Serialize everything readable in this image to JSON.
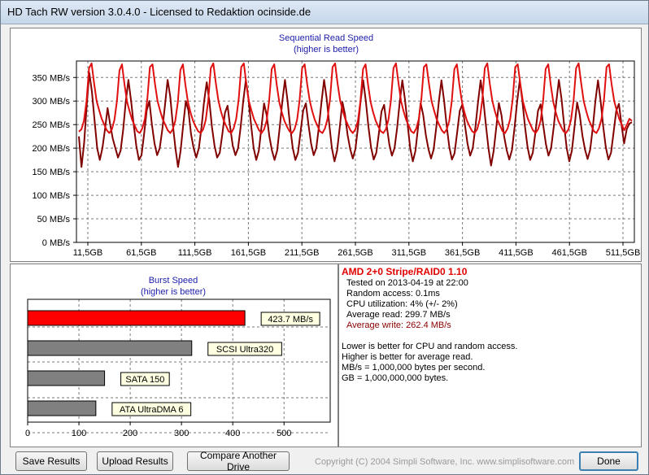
{
  "window": {
    "title": "HD Tach RW version 3.0.4.0 - Licensed to Redaktion ocinside.de"
  },
  "sequential": {
    "title": "Sequential Read Speed",
    "subtitle": "(higher is better)"
  },
  "burst": {
    "title": "Burst Speed",
    "subtitle": "(higher is better)"
  },
  "info": {
    "drive_name": "AMD 2+0 Stripe/RAID0 1.10",
    "tested_on": "Tested on 2013-04-19 at 22:00",
    "random_access": "Random access: 0.1ms",
    "cpu_utilization": "CPU utilization: 4% (+/- 2%)",
    "average_read": "Average read: 299.7 MB/s",
    "average_write": "Average write: 262.4 MB/s",
    "note1": "Lower is better for CPU and random access.",
    "note2": "Higher is better for average read.",
    "note3": "MB/s = 1,000,000 bytes per second.",
    "note4": "GB = 1,000,000,000 bytes."
  },
  "buttons": {
    "save": "Save Results",
    "upload": "Upload Results",
    "compare": "Compare Another Drive",
    "done": "Done"
  },
  "copyright": "Copyright (C) 2004 Simpli Software, Inc. www.simplisoftware.com",
  "colors": {
    "read": "#e01010",
    "write": "#800000",
    "burst_main": "#ff0000",
    "burst_ref": "#808080",
    "label_bg": "#ffffe1"
  },
  "chart_data": [
    {
      "type": "line",
      "title": "Sequential Read Speed",
      "subtitle": "(higher is better)",
      "x_tick_labels": [
        "11,5GB",
        "61,5GB",
        "111,5GB",
        "161,5GB",
        "211,5GB",
        "261,5GB",
        "311,5GB",
        "361,5GB",
        "411,5GB",
        "461,5GB",
        "511,5GB"
      ],
      "y_tick_labels": [
        "0 MB/s",
        "50 MB/s",
        "100 MB/s",
        "150 MB/s",
        "200 MB/s",
        "250 MB/s",
        "300 MB/s",
        "350 MB/s"
      ],
      "xlim": [
        0,
        520
      ],
      "ylim": [
        0,
        385
      ],
      "grid": true,
      "series": [
        {
          "key": "read",
          "values": [
            235,
            240,
            258,
            300,
            370,
            380,
            338,
            300,
            280,
            262,
            250,
            238,
            232,
            240,
            260,
            300,
            365,
            378,
            335,
            298,
            278,
            260,
            248,
            236,
            232,
            242,
            262,
            305,
            372,
            378,
            336,
            300,
            280,
            262,
            250,
            238,
            232,
            240,
            258,
            298,
            366,
            378,
            334,
            298,
            276,
            258,
            246,
            236,
            232,
            240,
            260,
            302,
            370,
            380,
            338,
            300,
            278,
            260,
            248,
            236,
            232,
            242,
            262,
            304,
            372,
            380,
            336,
            300,
            280,
            262,
            250,
            238,
            232,
            240,
            258,
            300,
            368,
            378,
            334,
            298,
            276,
            258,
            246,
            236,
            232,
            240,
            260,
            302,
            370,
            378,
            336,
            300,
            278,
            260,
            248,
            236,
            232,
            242,
            262,
            304,
            372,
            380,
            336,
            300,
            280,
            262,
            250,
            238,
            232,
            240,
            258,
            300,
            368,
            378,
            334,
            298,
            276,
            258,
            246,
            236,
            232,
            240,
            260,
            302,
            370,
            380,
            338,
            300,
            278,
            260,
            248,
            236,
            232,
            242,
            262,
            304,
            372,
            378,
            336,
            300,
            280,
            262,
            250,
            238,
            232,
            240,
            258,
            300,
            368,
            378,
            334,
            298,
            276,
            258,
            246,
            236,
            232,
            240,
            260,
            302,
            370,
            380,
            336,
            300,
            278,
            260,
            248,
            236,
            232,
            242,
            262,
            304,
            372,
            378,
            336,
            300,
            280,
            262,
            250,
            238,
            232,
            240,
            258,
            300,
            368,
            378,
            334,
            298,
            276,
            258,
            246,
            236,
            232,
            240,
            260,
            302,
            370,
            380,
            338,
            300,
            278,
            260,
            248,
            236,
            232,
            242,
            262,
            304,
            372,
            378,
            336,
            300,
            280,
            262,
            250,
            238,
            250,
            262,
            258
          ]
        },
        {
          "key": "write",
          "values": [
            225,
            160,
            210,
            290,
            360,
            320,
            260,
            200,
            175,
            200,
            240,
            285,
            250,
            220,
            200,
            180,
            195,
            240,
            300,
            345,
            300,
            250,
            205,
            175,
            185,
            230,
            280,
            300,
            250,
            210,
            185,
            200,
            240,
            290,
            345,
            310,
            250,
            200,
            160,
            195,
            250,
            300,
            280,
            230,
            200,
            180,
            200,
            245,
            300,
            340,
            300,
            245,
            205,
            180,
            190,
            230,
            275,
            290,
            245,
            205,
            185,
            200,
            245,
            300,
            345,
            305,
            250,
            200,
            175,
            195,
            245,
            295,
            270,
            225,
            195,
            175,
            195,
            245,
            300,
            345,
            300,
            245,
            200,
            175,
            190,
            235,
            280,
            295,
            250,
            210,
            185,
            200,
            245,
            298,
            345,
            305,
            250,
            200,
            172,
            195,
            245,
            298,
            272,
            228,
            198,
            178,
            198,
            245,
            300,
            344,
            300,
            246,
            202,
            176,
            190,
            232,
            278,
            292,
            248,
            208,
            184,
            200,
            243,
            298,
            344,
            304,
            250,
            200,
            172,
            194,
            244,
            296,
            270,
            228,
            198,
            178,
            197,
            244,
            299,
            344,
            300,
            246,
            202,
            176,
            189,
            233,
            279,
            293,
            249,
            209,
            184,
            200,
            244,
            298,
            344,
            304,
            250,
            200,
            163,
            194,
            244,
            296,
            270,
            226,
            196,
            176,
            196,
            244,
            299,
            344,
            300,
            246,
            202,
            175,
            190,
            233,
            279,
            293,
            249,
            209,
            184,
            200,
            244,
            298,
            345,
            305,
            250,
            200,
            172,
            195,
            245,
            297,
            271,
            227,
            197,
            177,
            197,
            244,
            300,
            344,
            300,
            246,
            202,
            176,
            190,
            234,
            280,
            294,
            250,
            210,
            240,
            252,
            255
          ]
        }
      ]
    },
    {
      "type": "bar",
      "title": "Burst Speed",
      "subtitle": "(higher is better)",
      "categories": [
        "AMD 2+0 Stripe/RAID0 1.10",
        "SCSI Ultra320",
        "SATA 150",
        "ATA UltraDMA 6"
      ],
      "bar_labels": [
        "423.7 MB/s",
        "SCSI Ultra320",
        "SATA 150",
        "ATA UltraDMA 6"
      ],
      "values": [
        423.7,
        320,
        150,
        133
      ],
      "x_tick_labels": [
        "0",
        "100",
        "200",
        "300",
        "400",
        "500"
      ],
      "xlim": [
        0,
        590
      ],
      "grid": true
    }
  ]
}
